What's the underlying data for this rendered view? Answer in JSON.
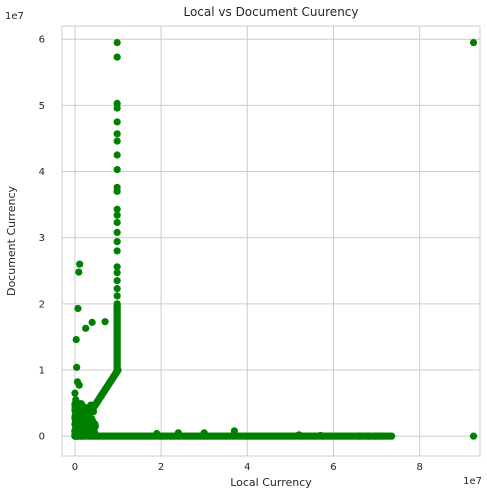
{
  "chart_data": {
    "type": "scatter",
    "title": "Local vs Document Cuurency",
    "xlabel": "Local Currency",
    "ylabel": "Document Currency",
    "x_offset_label": "1e7",
    "y_offset_label": "1e7",
    "xlim": [
      -0.3,
      9.4
    ],
    "ylim": [
      -0.3,
      6.2
    ],
    "x_ticks": [
      0,
      2,
      4,
      6,
      8
    ],
    "x_tick_labels": [
      "0",
      "2",
      "4",
      "6",
      "8"
    ],
    "y_ticks": [
      0,
      1,
      2,
      3,
      4,
      5,
      6
    ],
    "y_tick_labels": [
      "0",
      "1",
      "2",
      "3",
      "4",
      "5",
      "6"
    ],
    "grid": true,
    "marker_color": "#008000",
    "background": "#ffffff",
    "grid_color": "#cccccc",
    "segments": [
      {
        "from": [
          0,
          0
        ],
        "to": [
          1.0,
          1.0
        ],
        "n": 120
      },
      {
        "from": [
          0,
          0
        ],
        "to": [
          7.3,
          0.0
        ],
        "n": 180
      },
      {
        "from": [
          0.98,
          0.98
        ],
        "to": [
          0.98,
          2.0
        ],
        "n": 60
      }
    ],
    "cluster": {
      "x": [
        0,
        0.5
      ],
      "y": [
        0,
        0.5
      ],
      "n": 160
    },
    "points": [
      [
        0.98,
        5.95
      ],
      [
        0.98,
        5.73
      ],
      [
        0.98,
        5.03
      ],
      [
        0.98,
        4.96
      ],
      [
        0.98,
        4.75
      ],
      [
        0.98,
        4.57
      ],
      [
        0.98,
        4.46
      ],
      [
        0.98,
        4.25
      ],
      [
        0.98,
        4.03
      ],
      [
        0.98,
        3.76
      ],
      [
        0.98,
        3.7
      ],
      [
        0.98,
        3.43
      ],
      [
        0.98,
        3.34
      ],
      [
        0.98,
        3.23
      ],
      [
        0.98,
        3.08
      ],
      [
        0.98,
        2.94
      ],
      [
        0.98,
        2.8
      ],
      [
        0.98,
        2.56
      ],
      [
        0.98,
        2.47
      ],
      [
        0.98,
        2.35
      ],
      [
        0.98,
        2.23
      ],
      [
        0.98,
        2.12
      ],
      [
        0.11,
        2.6
      ],
      [
        0.09,
        2.48
      ],
      [
        0.07,
        1.93
      ],
      [
        0.25,
        1.63
      ],
      [
        0.4,
        1.72
      ],
      [
        0.7,
        1.73
      ],
      [
        0.03,
        1.46
      ],
      [
        0.04,
        1.04
      ],
      [
        0.06,
        0.82
      ],
      [
        0.1,
        0.77
      ],
      [
        0.0,
        0.65
      ],
      [
        0.02,
        0.55
      ],
      [
        0.0,
        0.48
      ],
      [
        9.25,
        5.95
      ],
      [
        9.25,
        0.0
      ],
      [
        6.6,
        0.0
      ],
      [
        6.8,
        0.0
      ],
      [
        6.95,
        0.0
      ],
      [
        7.05,
        0.0
      ],
      [
        7.35,
        0.0
      ],
      [
        3.7,
        0.08
      ],
      [
        3.0,
        0.05
      ],
      [
        2.4,
        0.05
      ],
      [
        1.9,
        0.04
      ],
      [
        5.2,
        0.02
      ],
      [
        5.7,
        0.01
      ]
    ]
  }
}
